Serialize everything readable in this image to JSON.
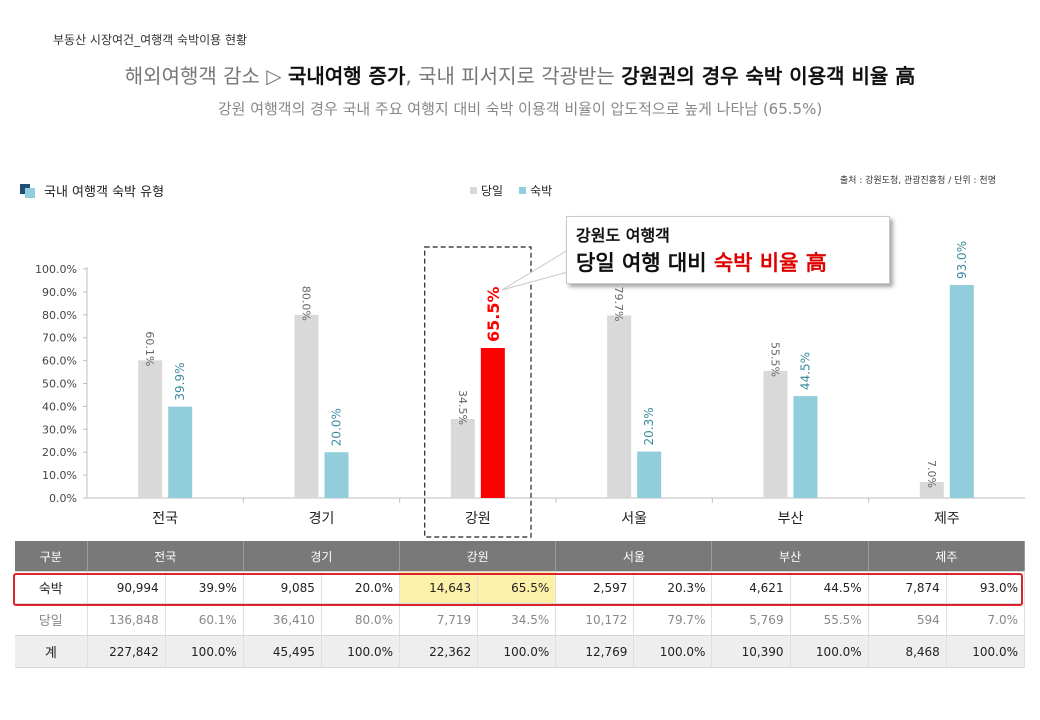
{
  "section_label": "부동산 시장여건_여행객 숙박이용 현황",
  "headline": {
    "part1": "해외여행객 감소 ▷ ",
    "part2": "국내여행 증가",
    "part3": ", 국내 피서지로 각광받는 ",
    "part4": "강원권의 경우 숙박 이용객 비율 高"
  },
  "subhead": "강원 여행객의 경우 국내 주요 여행지 대비 숙박 이용객 비율이 압도적으로 높게 나타남 (65.5%)",
  "source": "출처 : 강원도청, 관광진흥청 / 단위 : 천명",
  "colors": {
    "day": "#d9d9d9",
    "stay": "#92cddc",
    "highlight": "#ff0000",
    "callout_red": "#e00000"
  },
  "callout": {
    "line1": "강원도 여행객",
    "line2_a": "당일 여행 대비 ",
    "line2_b": "숙박 비율 高"
  },
  "chart_data": {
    "type": "bar",
    "title": "국내 여행객 숙박 유형",
    "categories": [
      "전국",
      "경기",
      "강원",
      "서울",
      "부산",
      "제주"
    ],
    "series": [
      {
        "name": "당일",
        "values": [
          60.1,
          80.0,
          34.5,
          79.7,
          55.5,
          7.0
        ],
        "labels": [
          "60.1%",
          "80.0%",
          "34.5%",
          "79.7%",
          "55.5%",
          "7.0%"
        ]
      },
      {
        "name": "숙박",
        "values": [
          39.9,
          20.0,
          65.5,
          20.3,
          44.5,
          93.0
        ],
        "labels": [
          "39.9%",
          "20.0%",
          "65.5%",
          "20.3%",
          "44.5%",
          "93.0%"
        ]
      }
    ],
    "y_ticks": [
      "0.0%",
      "10.0%",
      "20.0%",
      "30.0%",
      "40.0%",
      "50.0%",
      "60.0%",
      "70.0%",
      "80.0%",
      "90.0%",
      "100.0%"
    ],
    "ylim": [
      0,
      100
    ],
    "highlight_category": "강원",
    "legend_position": "top-center",
    "grid": false
  },
  "table": {
    "header_label": "구분",
    "regions": [
      "전국",
      "경기",
      "강원",
      "서울",
      "부산",
      "제주"
    ],
    "rows": [
      {
        "label": "숙박",
        "cells": [
          "90,994",
          "39.9%",
          "9,085",
          "20.0%",
          "14,643",
          "65.5%",
          "2,597",
          "20.3%",
          "4,621",
          "44.5%",
          "7,874",
          "93.0%"
        ]
      },
      {
        "label": "당일",
        "cells": [
          "136,848",
          "60.1%",
          "36,410",
          "80.0%",
          "7,719",
          "34.5%",
          "10,172",
          "79.7%",
          "5,769",
          "55.5%",
          "594",
          "7.0%"
        ]
      },
      {
        "label": "계",
        "cells": [
          "227,842",
          "100.0%",
          "45,495",
          "100.0%",
          "22,362",
          "100.0%",
          "12,769",
          "100.0%",
          "10,390",
          "100.0%",
          "8,468",
          "100.0%"
        ]
      }
    ]
  }
}
